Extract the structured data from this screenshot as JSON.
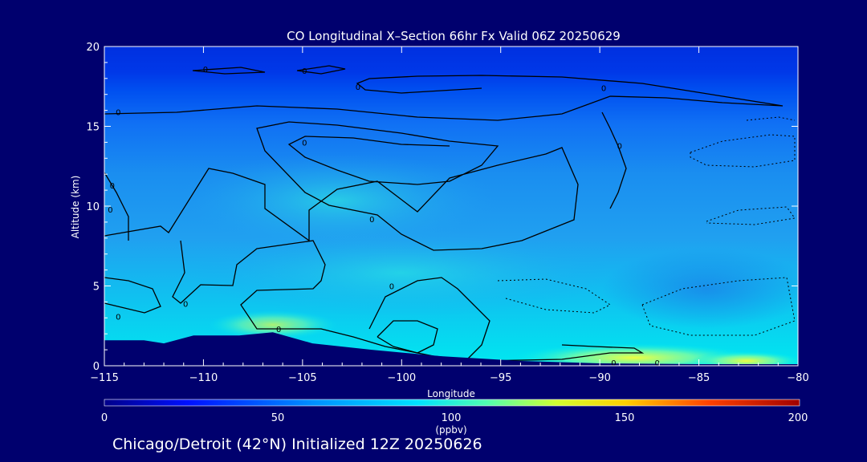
{
  "chart_data": {
    "type": "heatmap",
    "title": "CO Longitudinal X–Section 66hr  Fx Valid 06Z 20250629",
    "xlabel": "Longitude",
    "ylabel": "Altitude (km)",
    "xlim": [
      -115,
      -80
    ],
    "ylim": [
      0,
      20
    ],
    "x_ticks": [
      "−115",
      "−110",
      "−105",
      "−100",
      "−95",
      "−90",
      "−85",
      "−80"
    ],
    "x_tick_values": [
      -115,
      -110,
      -105,
      -100,
      -95,
      -90,
      -85,
      -80
    ],
    "y_ticks": [
      "0",
      "5",
      "10",
      "15",
      "20"
    ],
    "y_tick_values": [
      0,
      5,
      10,
      15,
      20
    ],
    "colorbar": {
      "label": "(ppbv)",
      "ticks": [
        "0",
        "50",
        "100",
        "150",
        "200"
      ],
      "tick_values": [
        0,
        50,
        100,
        150,
        200
      ],
      "range": [
        0,
        200
      ]
    },
    "contour_labels": [
      {
        "text": "0",
        "lon": -114.3,
        "alt": 15.9
      },
      {
        "text": "0",
        "lon": -109.9,
        "alt": 18.6
      },
      {
        "text": "0",
        "lon": -104.9,
        "alt": 18.5
      },
      {
        "text": "0",
        "lon": -102.2,
        "alt": 17.5
      },
      {
        "text": "0",
        "lon": -104.9,
        "alt": 14.0
      },
      {
        "text": "0",
        "lon": -89.8,
        "alt": 17.4
      },
      {
        "text": "0",
        "lon": -89.0,
        "alt": 13.8
      },
      {
        "text": "0",
        "lon": -114.6,
        "alt": 11.3
      },
      {
        "text": "0",
        "lon": -114.7,
        "alt": 9.8
      },
      {
        "text": "0",
        "lon": -101.5,
        "alt": 9.2
      },
      {
        "text": "0",
        "lon": -100.5,
        "alt": 5.0
      },
      {
        "text": "0",
        "lon": -110.9,
        "alt": 3.9
      },
      {
        "text": "0",
        "lon": -114.3,
        "alt": 3.1
      },
      {
        "text": "0",
        "lon": -106.2,
        "alt": 2.3
      },
      {
        "text": "0",
        "lon": -89.3,
        "alt": 0.2
      },
      {
        "text": "0",
        "lon": -87.1,
        "alt": 0.2
      }
    ],
    "terrain_profile_km": [
      {
        "lon": -115,
        "alt": 1.6
      },
      {
        "lon": -113,
        "alt": 1.6
      },
      {
        "lon": -112,
        "alt": 1.4
      },
      {
        "lon": -110.5,
        "alt": 1.9
      },
      {
        "lon": -108.2,
        "alt": 1.9
      },
      {
        "lon": -106.5,
        "alt": 2.1
      },
      {
        "lon": -104.5,
        "alt": 1.4
      },
      {
        "lon": -101.5,
        "alt": 1.0
      },
      {
        "lon": -98.0,
        "alt": 0.6
      },
      {
        "lon": -94.0,
        "alt": 0.3
      },
      {
        "lon": -90.0,
        "alt": 0.15
      },
      {
        "lon": -85.0,
        "alt": 0.1
      },
      {
        "lon": -80.0,
        "alt": 0.1
      }
    ],
    "colors": {
      "background": "#00006e",
      "low": "#0020d0",
      "mid": "#1a9af0",
      "high": "#00f0f0",
      "peak": "#b00000"
    }
  },
  "footer": {
    "caption": "Chicago/Detroit (42°N) Initialized 12Z 20250626"
  }
}
